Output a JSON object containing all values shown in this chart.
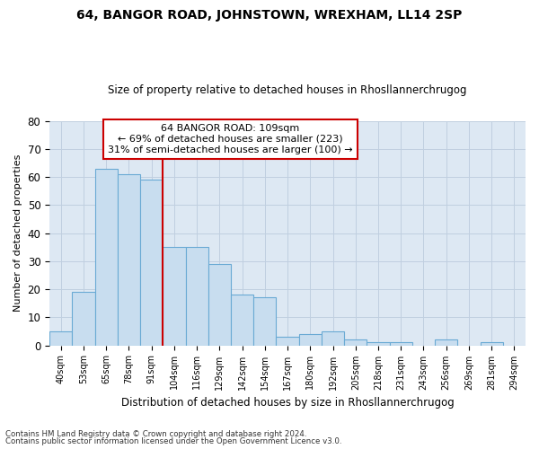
{
  "title": "64, BANGOR ROAD, JOHNSTOWN, WREXHAM, LL14 2SP",
  "subtitle": "Size of property relative to detached houses in Rhosllannerchrugog",
  "xlabel": "Distribution of detached houses by size in Rhosllannerchrugog",
  "ylabel": "Number of detached properties",
  "footer1": "Contains HM Land Registry data © Crown copyright and database right 2024.",
  "footer2": "Contains public sector information licensed under the Open Government Licence v3.0.",
  "categories": [
    "40sqm",
    "53sqm",
    "65sqm",
    "78sqm",
    "91sqm",
    "104sqm",
    "116sqm",
    "129sqm",
    "142sqm",
    "154sqm",
    "167sqm",
    "180sqm",
    "192sqm",
    "205sqm",
    "218sqm",
    "231sqm",
    "243sqm",
    "256sqm",
    "269sqm",
    "281sqm",
    "294sqm"
  ],
  "values": [
    5,
    19,
    63,
    61,
    59,
    35,
    35,
    29,
    18,
    17,
    3,
    4,
    5,
    2,
    1,
    1,
    0,
    2,
    0,
    1,
    0
  ],
  "bar_color": "#c8ddef",
  "bar_edge_color": "#6aaad4",
  "subject_label": "64 BANGOR ROAD: 109sqm",
  "annotation_line1": "← 69% of detached houses are smaller (223)",
  "annotation_line2": "31% of semi-detached houses are larger (100) →",
  "annotation_box_color": "#ffffff",
  "annotation_box_edge": "#cc0000",
  "ylim": [
    0,
    80
  ],
  "yticks": [
    0,
    10,
    20,
    30,
    40,
    50,
    60,
    70,
    80
  ],
  "grid_color": "#c0cfe0",
  "background_color": "#dde8f3",
  "vline_color": "#cc0000",
  "vline_x": 4.5
}
